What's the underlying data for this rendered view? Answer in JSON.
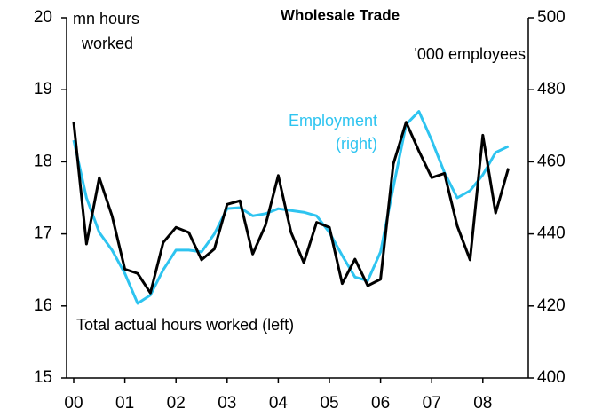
{
  "chart_data": {
    "type": "line",
    "title": "Wholesale Trade",
    "y_label": [
      "mn hours",
      "worked"
    ],
    "y2_label": "'000 employees",
    "annotations": [
      {
        "lines": [
          "Employment",
          "(right)"
        ],
        "color": "#2ec4f0"
      },
      {
        "lines": [
          "Total actual hours worked (left)"
        ],
        "color": "#000000"
      }
    ],
    "categories": [
      "00",
      null,
      null,
      null,
      "01",
      null,
      null,
      null,
      "02",
      null,
      null,
      null,
      "03",
      null,
      null,
      null,
      "04",
      null,
      null,
      null,
      "05",
      null,
      null,
      null,
      "06",
      null,
      null,
      null,
      "07",
      null,
      null,
      null,
      "08",
      null,
      null
    ],
    "series": [
      {
        "name": "Total actual hours worked (left)",
        "color": "#000000",
        "values": [
          18.55,
          16.86,
          17.78,
          17.25,
          16.51,
          16.45,
          16.18,
          16.88,
          17.09,
          17.02,
          16.64,
          16.79,
          17.41,
          17.46,
          16.72,
          17.12,
          17.81,
          17.02,
          16.6,
          17.16,
          17.09,
          16.31,
          16.65,
          16.28,
          16.37,
          17.97,
          18.55,
          18.15,
          17.78,
          17.84,
          17.11,
          16.64,
          18.37,
          17.29,
          17.91
        ]
      },
      {
        "name": "Employment (right)",
        "color": "#2ec4f0",
        "axis": "y2",
        "values": [
          466,
          450,
          440.4,
          435.5,
          429,
          420.7,
          423,
          430,
          435.5,
          435.5,
          435,
          440,
          447,
          447.3,
          445,
          445.6,
          447,
          446.5,
          446,
          445,
          440.4,
          434,
          428,
          427,
          435,
          453,
          470.4,
          474,
          466,
          457,
          450,
          452,
          456.4,
          462.6,
          464.3
        ]
      }
    ],
    "ylim": [
      15,
      20
    ],
    "yticks": [
      15,
      16,
      17,
      18,
      19,
      20
    ],
    "y2lim": [
      400,
      500
    ],
    "y2ticks": [
      400,
      420,
      440,
      460,
      480,
      500
    ]
  }
}
